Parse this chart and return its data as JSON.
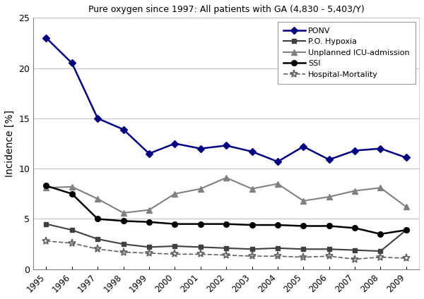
{
  "title": "Pure oxygen since 1997: All patients with GA (4,830 - 5,403/Y)",
  "ylabel": "Incidence [%]",
  "years": [
    1995,
    1996,
    1997,
    1998,
    1999,
    2000,
    2001,
    2002,
    2003,
    2004,
    2005,
    2006,
    2007,
    2008,
    2009
  ],
  "PONV": [
    23.0,
    20.5,
    15.0,
    13.9,
    11.5,
    12.5,
    12.0,
    12.3,
    11.7,
    10.7,
    12.2,
    10.9,
    11.8,
    12.0,
    11.1
  ],
  "PO_Hypoxia": [
    4.5,
    3.9,
    3.0,
    2.5,
    2.2,
    2.3,
    2.2,
    2.1,
    2.0,
    2.1,
    2.0,
    2.0,
    1.9,
    1.8,
    3.9
  ],
  "ICU_admission": [
    8.1,
    8.2,
    7.0,
    5.6,
    5.9,
    7.5,
    8.0,
    9.1,
    8.0,
    8.5,
    6.8,
    7.2,
    7.8,
    8.1,
    6.2
  ],
  "SSI": [
    8.3,
    7.5,
    5.0,
    4.8,
    4.7,
    4.5,
    4.5,
    4.5,
    4.4,
    4.4,
    4.3,
    4.3,
    4.1,
    3.5,
    3.9
  ],
  "Hospital_Mortality": [
    2.8,
    2.6,
    2.0,
    1.7,
    1.6,
    1.5,
    1.5,
    1.4,
    1.3,
    1.3,
    1.2,
    1.3,
    1.0,
    1.2,
    1.1
  ],
  "PONV_color": "#000080",
  "line_color_dark": "#000000",
  "line_color_gray": "#808080",
  "ylim": [
    0,
    25
  ],
  "yticks": [
    0,
    5,
    10,
    15,
    20,
    25
  ],
  "legend_labels": [
    "PONV",
    "P.O. Hypoxia",
    "Unplanned ICU-admission",
    "SSI",
    "Hospital-Mortality"
  ]
}
